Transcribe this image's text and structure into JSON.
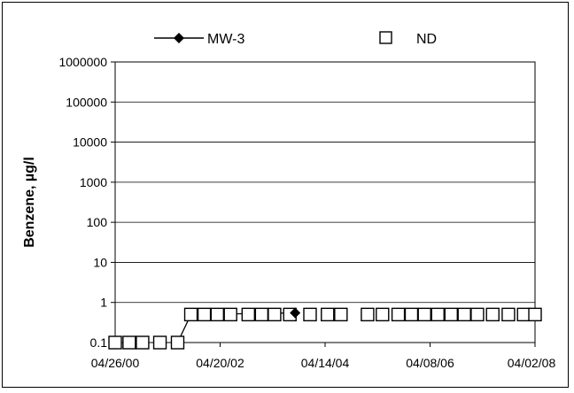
{
  "chart_data": {
    "type": "scatter",
    "title": "",
    "xlabel": "",
    "ylabel": "Benzene, µg/l",
    "yscale": "log",
    "ylim": [
      0.1,
      1000000
    ],
    "xlim": [
      "2000-04-26",
      "2008-04-02"
    ],
    "grid": "horizontal",
    "legend_position": "top",
    "y_ticks": [
      "1000000",
      "100000",
      "10000",
      "1000",
      "100",
      "10",
      "1",
      "0.1"
    ],
    "x_ticks": [
      "04/26/00",
      "04/20/02",
      "04/14/04",
      "04/08/06",
      "04/02/08"
    ],
    "series": [
      {
        "name": "MW-3",
        "marker": "diamond-filled",
        "line": true,
        "color": "#000000",
        "points": [
          {
            "x": "2001-07-01",
            "y": 0.1
          },
          {
            "x": "2001-10-01",
            "y": 0.5
          },
          {
            "x": "2003-09-20",
            "y": 0.55
          }
        ]
      },
      {
        "name": "ND",
        "marker": "square-open",
        "line": false,
        "color": "#000000",
        "points": [
          {
            "x": "2000-04-26",
            "y": 0.1
          },
          {
            "x": "2000-08-01",
            "y": 0.1
          },
          {
            "x": "2000-11-01",
            "y": 0.1
          },
          {
            "x": "2001-03-01",
            "y": 0.1
          },
          {
            "x": "2001-07-01",
            "y": 0.1
          },
          {
            "x": "2001-10-01",
            "y": 0.5
          },
          {
            "x": "2002-01-01",
            "y": 0.5
          },
          {
            "x": "2002-04-01",
            "y": 0.5
          },
          {
            "x": "2002-07-01",
            "y": 0.5
          },
          {
            "x": "2002-11-01",
            "y": 0.5
          },
          {
            "x": "2003-02-01",
            "y": 0.5
          },
          {
            "x": "2003-05-01",
            "y": 0.5
          },
          {
            "x": "2003-08-15",
            "y": 0.5
          },
          {
            "x": "2004-01-01",
            "y": 0.5
          },
          {
            "x": "2004-05-01",
            "y": 0.5
          },
          {
            "x": "2004-08-01",
            "y": 0.5
          },
          {
            "x": "2005-02-01",
            "y": 0.5
          },
          {
            "x": "2005-05-15",
            "y": 0.5
          },
          {
            "x": "2005-09-01",
            "y": 0.5
          },
          {
            "x": "2005-12-01",
            "y": 0.5
          },
          {
            "x": "2006-03-01",
            "y": 0.5
          },
          {
            "x": "2006-06-01",
            "y": 0.5
          },
          {
            "x": "2006-09-01",
            "y": 0.5
          },
          {
            "x": "2006-12-01",
            "y": 0.5
          },
          {
            "x": "2007-03-01",
            "y": 0.5
          },
          {
            "x": "2007-06-15",
            "y": 0.5
          },
          {
            "x": "2007-10-01",
            "y": 0.5
          },
          {
            "x": "2008-01-15",
            "y": 0.5
          },
          {
            "x": "2008-04-02",
            "y": 0.5
          }
        ]
      }
    ]
  }
}
